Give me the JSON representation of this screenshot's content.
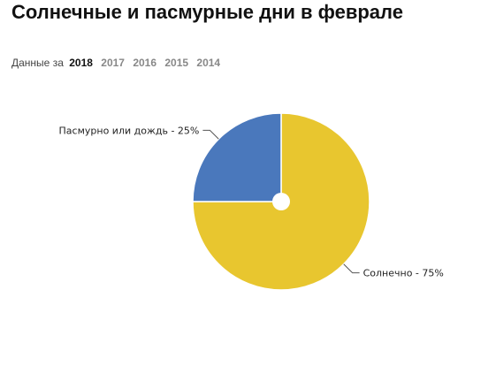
{
  "title": "Солнечные и пасмурные дни в феврале",
  "year_selector": {
    "prefix": "Данные за",
    "years": [
      {
        "label": "2018",
        "active": true
      },
      {
        "label": "2017",
        "active": false
      },
      {
        "label": "2016",
        "active": false
      },
      {
        "label": "2015",
        "active": false
      },
      {
        "label": "2014",
        "active": false
      }
    ]
  },
  "chart_data": {
    "type": "pie",
    "slices": [
      {
        "label": "Солнечно - 75%",
        "value": 75,
        "color": "#E8C62F"
      },
      {
        "label": "Пасмурно или дождь - 25%",
        "value": 25,
        "color": "#4A78BC"
      }
    ],
    "legend": "none"
  }
}
